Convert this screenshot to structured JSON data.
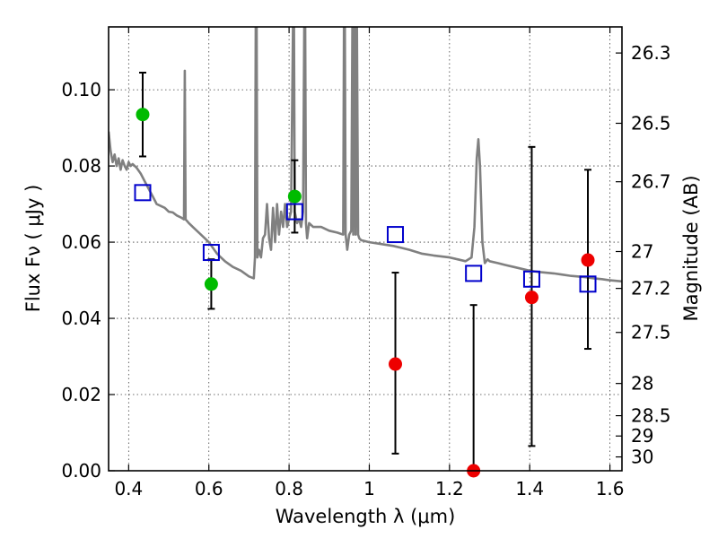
{
  "chart_data": {
    "type": "scatter",
    "title": "",
    "xlabel": "Wavelength  λ (μm)",
    "ylabel": "Flux  Fν  ( μJy )",
    "ylabel_right": "Magnitude (AB)",
    "xlim": [
      0.35,
      1.63
    ],
    "ylim": [
      0.0,
      0.1165
    ],
    "grid": true,
    "x_ticks": [
      0.4,
      0.6,
      0.8,
      1.0,
      1.2,
      1.4,
      1.6
    ],
    "x_tick_labels": [
      "0.4",
      "0.6",
      "0.8",
      "1",
      "1.2",
      "1.4",
      "1.6"
    ],
    "y_ticks": [
      0.0,
      0.02,
      0.04,
      0.06,
      0.08,
      0.1
    ],
    "y_tick_labels": [
      "0.00",
      "0.02",
      "0.04",
      "0.06",
      "0.08",
      "0.10"
    ],
    "magnitude_ticks": [
      26.3,
      26.5,
      26.7,
      27,
      27.2,
      27.5,
      28,
      28.5,
      29,
      30
    ],
    "magnitude_tick_labels": [
      "26.3",
      "26.5",
      "26.7",
      "27",
      "27.2",
      "27.5",
      "28",
      "28.5",
      "29",
      "30"
    ],
    "colors": {
      "detection": "#00bb00",
      "nondetection": "#ee0000",
      "model_photometry": "#0000cc",
      "sed": "#808080",
      "errorbar": "#000000"
    },
    "series": [
      {
        "kind": "points",
        "color_key": "detection",
        "points": [
          {
            "x": 0.435,
            "y": 0.0935,
            "err_low": 0.0825,
            "err_high": 0.1045
          },
          {
            "x": 0.606,
            "y": 0.049,
            "err_low": 0.0425,
            "err_high": 0.0555
          },
          {
            "x": 0.814,
            "y": 0.072,
            "err_low": 0.0625,
            "err_high": 0.0815
          }
        ]
      },
      {
        "kind": "points",
        "color_key": "nondetection",
        "points": [
          {
            "x": 1.065,
            "y": 0.028,
            "err_low": 0.0045,
            "err_high": 0.052
          },
          {
            "x": 1.26,
            "y": 0.0,
            "err_low": 0.0,
            "err_high": 0.0435
          },
          {
            "x": 1.405,
            "y": 0.0455,
            "err_low": 0.0065,
            "err_high": 0.085
          },
          {
            "x": 1.545,
            "y": 0.0553,
            "err_low": 0.032,
            "err_high": 0.079
          }
        ]
      },
      {
        "kind": "squares",
        "color_key": "model_photometry",
        "points": [
          {
            "x": 0.435,
            "y": 0.073
          },
          {
            "x": 0.606,
            "y": 0.0573
          },
          {
            "x": 0.814,
            "y": 0.068
          },
          {
            "x": 1.065,
            "y": 0.062
          },
          {
            "x": 1.26,
            "y": 0.0518
          },
          {
            "x": 1.405,
            "y": 0.0503
          },
          {
            "x": 1.545,
            "y": 0.049
          }
        ]
      },
      {
        "kind": "line",
        "color_key": "sed",
        "points": [
          [
            0.35,
            0.089
          ],
          [
            0.355,
            0.084
          ],
          [
            0.36,
            0.081
          ],
          [
            0.365,
            0.083
          ],
          [
            0.37,
            0.08
          ],
          [
            0.375,
            0.082
          ],
          [
            0.38,
            0.079
          ],
          [
            0.385,
            0.0815
          ],
          [
            0.39,
            0.08
          ],
          [
            0.395,
            0.079
          ],
          [
            0.4,
            0.081
          ],
          [
            0.405,
            0.08
          ],
          [
            0.41,
            0.0805
          ],
          [
            0.42,
            0.0795
          ],
          [
            0.43,
            0.078
          ],
          [
            0.44,
            0.076
          ],
          [
            0.45,
            0.074
          ],
          [
            0.46,
            0.072
          ],
          [
            0.47,
            0.07
          ],
          [
            0.48,
            0.0695
          ],
          [
            0.49,
            0.069
          ],
          [
            0.5,
            0.068
          ],
          [
            0.51,
            0.0678
          ],
          [
            0.52,
            0.067
          ],
          [
            0.53,
            0.0665
          ],
          [
            0.538,
            0.066
          ],
          [
            0.54,
            0.105
          ],
          [
            0.542,
            0.066
          ],
          [
            0.55,
            0.065
          ],
          [
            0.56,
            0.064
          ],
          [
            0.58,
            0.062
          ],
          [
            0.6,
            0.06
          ],
          [
            0.62,
            0.057
          ],
          [
            0.64,
            0.055
          ],
          [
            0.66,
            0.0535
          ],
          [
            0.68,
            0.0525
          ],
          [
            0.7,
            0.051
          ],
          [
            0.712,
            0.0505
          ],
          [
            0.715,
            0.056
          ],
          [
            0.717,
            0.12
          ],
          [
            0.719,
            0.12
          ],
          [
            0.721,
            0.056
          ],
          [
            0.725,
            0.058
          ],
          [
            0.73,
            0.056
          ],
          [
            0.735,
            0.061
          ],
          [
            0.74,
            0.062
          ],
          [
            0.745,
            0.07
          ],
          [
            0.75,
            0.061
          ],
          [
            0.755,
            0.058
          ],
          [
            0.76,
            0.069
          ],
          [
            0.765,
            0.06
          ],
          [
            0.77,
            0.07
          ],
          [
            0.775,
            0.062
          ],
          [
            0.78,
            0.068
          ],
          [
            0.785,
            0.064
          ],
          [
            0.79,
            0.07
          ],
          [
            0.795,
            0.064
          ],
          [
            0.8,
            0.066
          ],
          [
            0.805,
            0.068
          ],
          [
            0.81,
            0.12
          ],
          [
            0.812,
            0.12
          ],
          [
            0.814,
            0.068
          ],
          [
            0.82,
            0.065
          ],
          [
            0.825,
            0.066
          ],
          [
            0.83,
            0.064
          ],
          [
            0.835,
            0.068
          ],
          [
            0.838,
            0.12
          ],
          [
            0.84,
            0.12
          ],
          [
            0.842,
            0.065
          ],
          [
            0.845,
            0.061
          ],
          [
            0.85,
            0.065
          ],
          [
            0.86,
            0.064
          ],
          [
            0.88,
            0.064
          ],
          [
            0.9,
            0.063
          ],
          [
            0.92,
            0.0625
          ],
          [
            0.935,
            0.062
          ],
          [
            0.937,
            0.12
          ],
          [
            0.939,
            0.12
          ],
          [
            0.941,
            0.062
          ],
          [
            0.945,
            0.058
          ],
          [
            0.95,
            0.062
          ],
          [
            0.955,
            0.063
          ],
          [
            0.958,
            0.12
          ],
          [
            0.96,
            0.062
          ],
          [
            0.963,
            0.12
          ],
          [
            0.966,
            0.062
          ],
          [
            0.969,
            0.12
          ],
          [
            0.972,
            0.062
          ],
          [
            0.975,
            0.061
          ],
          [
            0.98,
            0.0605
          ],
          [
            1.0,
            0.06
          ],
          [
            1.03,
            0.0595
          ],
          [
            1.06,
            0.059
          ],
          [
            1.08,
            0.0585
          ],
          [
            1.1,
            0.058
          ],
          [
            1.13,
            0.057
          ],
          [
            1.16,
            0.0565
          ],
          [
            1.2,
            0.056
          ],
          [
            1.22,
            0.0555
          ],
          [
            1.24,
            0.055
          ],
          [
            1.255,
            0.056
          ],
          [
            1.262,
            0.064
          ],
          [
            1.268,
            0.082
          ],
          [
            1.272,
            0.087
          ],
          [
            1.276,
            0.08
          ],
          [
            1.282,
            0.06
          ],
          [
            1.288,
            0.0545
          ],
          [
            1.295,
            0.0555
          ],
          [
            1.3,
            0.055
          ],
          [
            1.32,
            0.0545
          ],
          [
            1.34,
            0.054
          ],
          [
            1.36,
            0.0535
          ],
          [
            1.38,
            0.053
          ],
          [
            1.4,
            0.0525
          ],
          [
            1.42,
            0.0522
          ],
          [
            1.44,
            0.052
          ],
          [
            1.46,
            0.0518
          ],
          [
            1.48,
            0.0515
          ],
          [
            1.5,
            0.0512
          ],
          [
            1.52,
            0.051
          ],
          [
            1.54,
            0.0508
          ],
          [
            1.56,
            0.0505
          ],
          [
            1.58,
            0.0503
          ],
          [
            1.6,
            0.05
          ],
          [
            1.63,
            0.0497
          ]
        ]
      }
    ]
  }
}
